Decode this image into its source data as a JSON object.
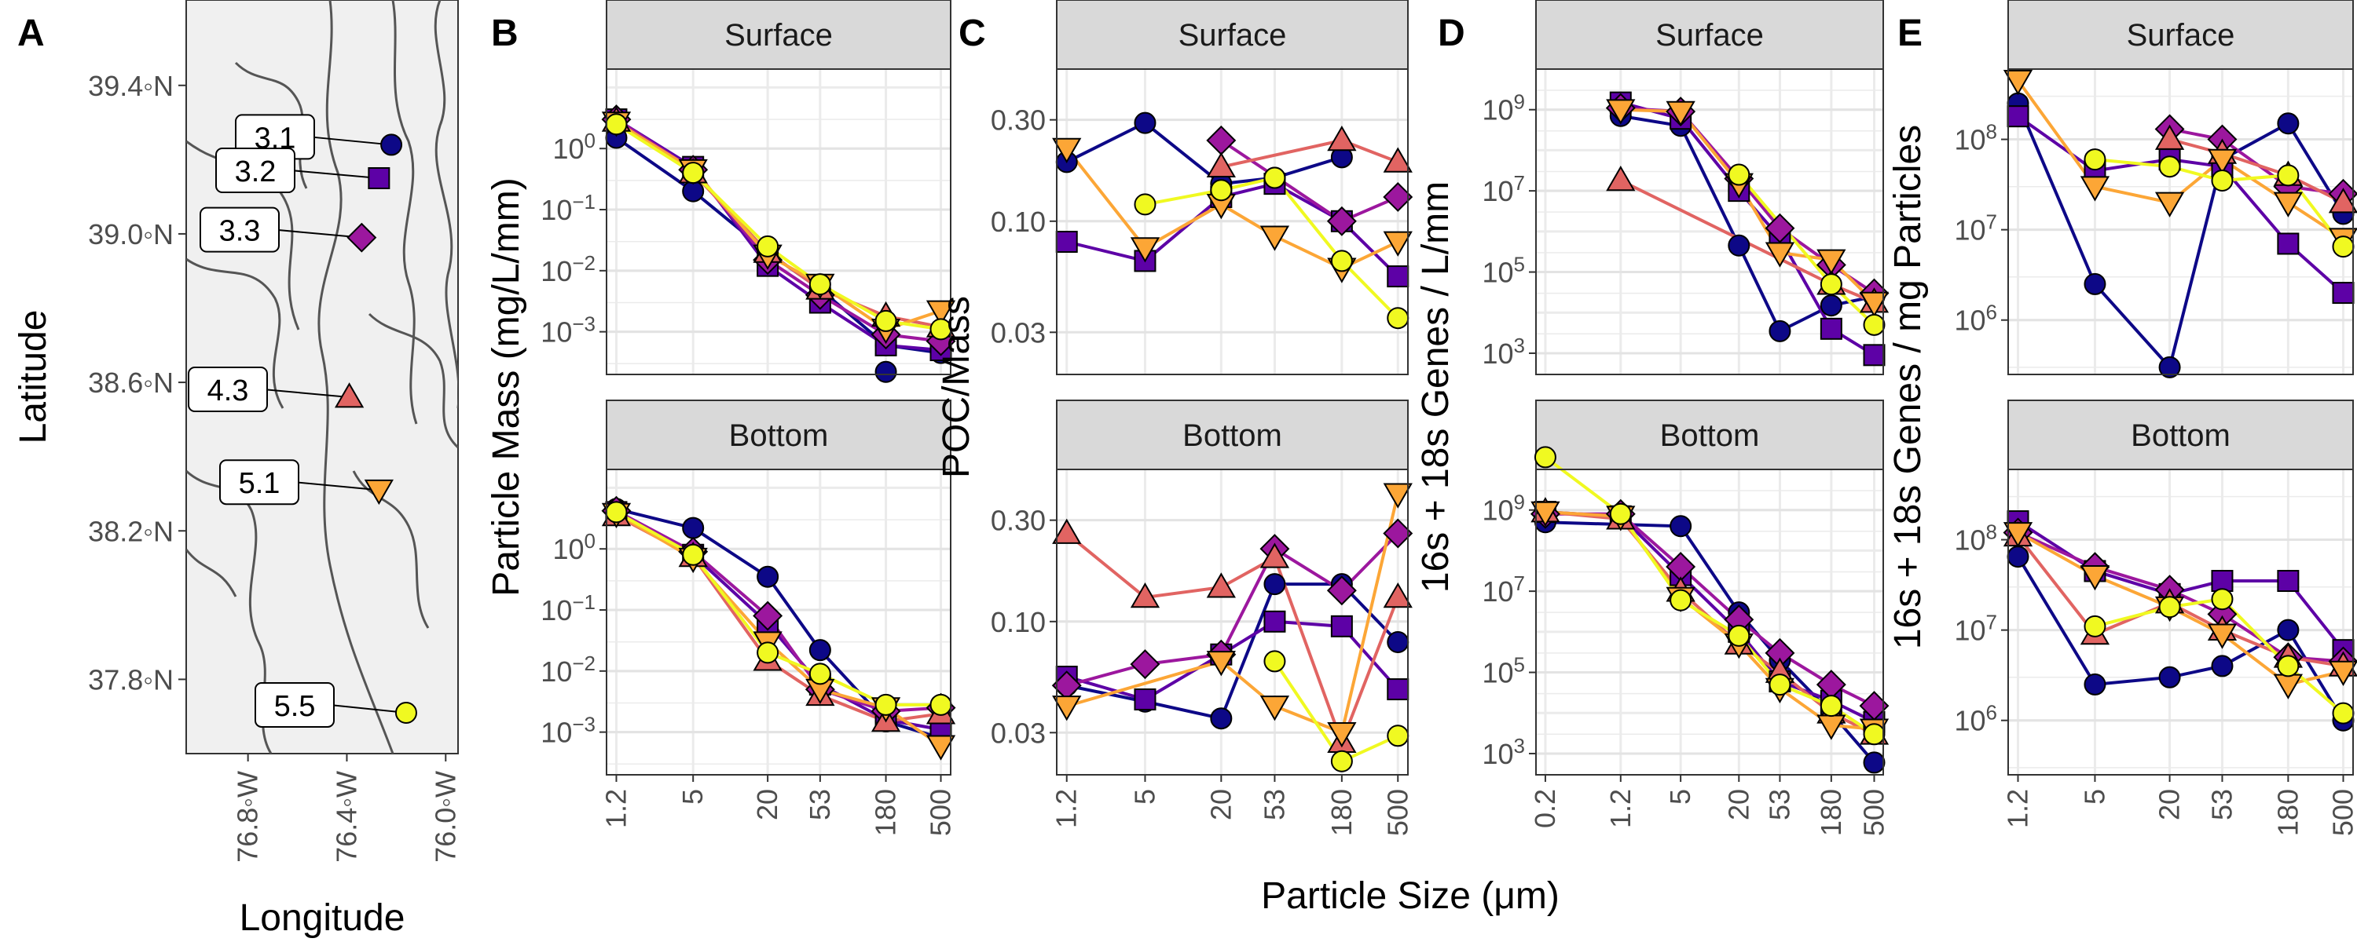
{
  "colors": {
    "3.1": "#0d0887",
    "3.2": "#5d01a6",
    "3.3": "#9c179e",
    "4.3": "#e16462",
    "5.1": "#fca636",
    "5.5": "#f0f921"
  },
  "stations": [
    "3.1",
    "3.2",
    "3.3",
    "4.3",
    "5.1",
    "5.5"
  ],
  "shapes": {
    "3.1": "circle",
    "3.2": "square",
    "3.3": "diamond",
    "4.3": "triangle",
    "5.1": "triangle-down",
    "5.5": "circle"
  },
  "map": {
    "letter": "A",
    "xlabel": "Longitude",
    "ylabel": "Latitude",
    "xlim": [
      -77.05,
      -75.95
    ],
    "ylim": [
      37.6,
      39.63
    ],
    "xticks": [
      {
        "v": -76.8,
        "label": "76.8◦W"
      },
      {
        "v": -76.4,
        "label": "76.4◦W"
      },
      {
        "v": -76.0,
        "label": "76.0◦W"
      }
    ],
    "yticks": [
      {
        "v": 39.4,
        "label": "39.4◦N"
      },
      {
        "v": 39.0,
        "label": "39.0◦N"
      },
      {
        "v": 38.6,
        "label": "38.6◦N"
      },
      {
        "v": 38.2,
        "label": "38.2◦N"
      },
      {
        "v": 37.8,
        "label": "37.8◦N"
      }
    ],
    "points": [
      {
        "station": "3.1",
        "lon": -76.22,
        "lat": 39.24,
        "label": "3.1"
      },
      {
        "station": "3.2",
        "lon": -76.27,
        "lat": 39.15,
        "label": "3.2"
      },
      {
        "station": "3.3",
        "lon": -76.34,
        "lat": 38.99,
        "label": "3.3"
      },
      {
        "station": "4.3",
        "lon": -76.39,
        "lat": 38.56,
        "label": "4.3"
      },
      {
        "station": "5.1",
        "lon": -76.27,
        "lat": 38.31,
        "label": "5.1"
      },
      {
        "station": "5.5",
        "lon": -76.16,
        "lat": 37.71,
        "label": "5.5"
      }
    ]
  },
  "shared_xlabel": "Particle Size (μm)",
  "chart_data": [
    {
      "type": "line",
      "letter": "B",
      "ylabel": "Particle Mass (mg/L/mm)",
      "log_y": true,
      "ylim": [
        0.0002,
        20
      ],
      "yticks": [
        {
          "v": 1,
          "label": "10^0"
        },
        {
          "v": 0.1,
          "label": "10^-1"
        },
        {
          "v": 0.01,
          "label": "10^-2"
        },
        {
          "v": 0.001,
          "label": "10^-3"
        }
      ],
      "x": [
        "1.2",
        "5",
        "20",
        "53",
        "180",
        "500"
      ],
      "xvals": [
        1.2,
        5,
        20,
        53,
        180,
        500
      ],
      "xlim": [
        1.0,
        600
      ],
      "facets": [
        {
          "strip": "Surface",
          "series": [
            {
              "station": "3.1",
              "values": [
                1.5,
                0.2,
                0.02,
                0.005,
                0.0006,
                0.00045
              ]
            },
            {
              "station": "3.2",
              "values": [
                3.0,
                0.5,
                0.012,
                0.003,
                0.0006,
                0.0005
              ]
            },
            {
              "station": "3.3",
              "values": [
                3.0,
                0.45,
                0.015,
                0.004,
                0.0009,
                0.0007
              ]
            },
            {
              "station": "4.3",
              "values": [
                2.8,
                0.4,
                0.02,
                0.005,
                0.0018,
                0.0012
              ]
            },
            {
              "station": "5.1",
              "values": [
                2.7,
                0.45,
                0.018,
                0.006,
                0.0011,
                0.0022
              ]
            },
            {
              "station": "5.5",
              "values": [
                2.5,
                0.4,
                0.025,
                0.006,
                0.0015,
                0.0011
              ]
            }
          ],
          "extra_points": [
            {
              "station": "3.1",
              "x": 180,
              "y": 0.00022
            }
          ]
        },
        {
          "strip": "Bottom",
          "series": [
            {
              "station": "3.1",
              "values": [
                4.5,
                2.2,
                0.35,
                0.022,
                0.0015,
                0.0008
              ]
            },
            {
              "station": "3.2",
              "values": [
                4.0,
                0.8,
                0.06,
                0.006,
                0.0016,
                0.0011
              ]
            },
            {
              "station": "3.3",
              "values": [
                4.2,
                0.9,
                0.08,
                0.005,
                0.0022,
                0.0025
              ]
            },
            {
              "station": "4.3",
              "values": [
                3.5,
                0.75,
                0.015,
                0.004,
                0.0015,
                0.002
              ]
            },
            {
              "station": "5.1",
              "values": [
                3.8,
                0.7,
                0.03,
                0.005,
                0.0025,
                0.0006
              ]
            },
            {
              "station": "5.5",
              "values": [
                4.0,
                0.8,
                0.02,
                0.009,
                0.0028,
                0.0028
              ]
            }
          ]
        }
      ]
    },
    {
      "type": "line",
      "letter": "C",
      "ylabel": "POC/Mass",
      "log_y": true,
      "ylim": [
        0.019,
        0.52
      ],
      "yticks": [
        {
          "v": 0.3,
          "label": "0.30"
        },
        {
          "v": 0.1,
          "label": "0.10"
        },
        {
          "v": 0.03,
          "label": "0.03"
        }
      ],
      "x": [
        "1.2",
        "5",
        "20",
        "53",
        "180",
        "500"
      ],
      "xvals": [
        1.2,
        5,
        20,
        53,
        180,
        500
      ],
      "xlim": [
        1.0,
        600
      ],
      "facets": [
        {
          "strip": "Surface",
          "series": [
            {
              "station": "3.1",
              "values": [
                0.19,
                0.29,
                0.15,
                0.16,
                0.2,
                null
              ]
            },
            {
              "station": "3.2",
              "values": [
                0.08,
                0.065,
                0.13,
                0.15,
                0.1,
                0.055
              ]
            },
            {
              "station": "3.3",
              "values": [
                null,
                null,
                0.24,
                null,
                0.1,
                0.13
              ]
            },
            {
              "station": "4.3",
              "values": [
                null,
                null,
                0.18,
                null,
                0.24,
                0.19
              ]
            },
            {
              "station": "5.1",
              "values": [
                0.22,
                0.075,
                0.12,
                0.085,
                0.06,
                0.08
              ]
            },
            {
              "station": "5.5",
              "values": [
                null,
                0.12,
                0.14,
                0.16,
                0.065,
                0.035
              ]
            }
          ]
        },
        {
          "strip": "Bottom",
          "series": [
            {
              "station": "3.1",
              "values": [
                0.05,
                0.042,
                0.035,
                0.15,
                0.15,
                0.08
              ]
            },
            {
              "station": "3.2",
              "values": [
                0.055,
                0.043,
                0.07,
                0.1,
                0.095,
                0.048
              ]
            },
            {
              "station": "3.3",
              "values": [
                0.05,
                0.063,
                0.07,
                0.22,
                0.14,
                0.26
              ]
            },
            {
              "station": "4.3",
              "values": [
                0.26,
                0.13,
                0.145,
                0.2,
                0.027,
                0.13
              ]
            },
            {
              "station": "5.1",
              "values": [
                0.04,
                null,
                0.065,
                0.04,
                0.03,
                0.4
              ]
            },
            {
              "station": "5.5",
              "values": [
                null,
                null,
                null,
                0.065,
                0.022,
                0.029
              ]
            }
          ]
        }
      ]
    },
    {
      "type": "line",
      "letter": "D",
      "ylabel": "16s + 18s Genes / L/mm",
      "log_y": true,
      "ylim": [
        300,
        10000000000.0
      ],
      "yticks": [
        {
          "v": 1000000000.0,
          "label": "10^9"
        },
        {
          "v": 10000000.0,
          "label": "10^7"
        },
        {
          "v": 100000.0,
          "label": "10^5"
        },
        {
          "v": 1000.0,
          "label": "10^3"
        }
      ],
      "x": [
        "0.2",
        "1.2",
        "5",
        "20",
        "53",
        "180",
        "500"
      ],
      "xvals": [
        0.2,
        1.2,
        5,
        20,
        53,
        180,
        500
      ],
      "xlim": [
        0.16,
        620
      ],
      "facets": [
        {
          "strip": "Surface",
          "series": [
            {
              "station": "3.1",
              "values": [
                null,
                700000000.0,
                400000000.0,
                450000.0,
                3500.0,
                15000.0,
                25000.0
              ]
            },
            {
              "station": "3.2",
              "values": [
                null,
                1500000000.0,
                600000000.0,
                10000000.0,
                700000.0,
                4000.0,
                900.0
              ]
            },
            {
              "station": "3.3",
              "values": [
                null,
                1100000000.0,
                900000000.0,
                20000000.0,
                1200000.0,
                150000.0,
                30000.0
              ]
            },
            {
              "station": "4.3",
              "values": [
                null,
                18000000.0,
                null,
                null,
                null,
                50000.0,
                18000.0
              ]
            },
            {
              "station": "5.1",
              "values": [
                null,
                1000000000.0,
                900000000.0,
                15000000.0,
                300000.0,
                200000.0,
                18000.0
              ]
            },
            {
              "station": "5.5",
              "values": [
                null,
                null,
                null,
                25000000.0,
                null,
                50000.0,
                5000.0
              ]
            }
          ]
        },
        {
          "strip": "Bottom",
          "series": [
            {
              "station": "3.1",
              "values": [
                500000000.0,
                null,
                400000000.0,
                3000000.0,
                200000.0,
                10000.0,
                600
              ]
            },
            {
              "station": "3.2",
              "values": [
                900000000.0,
                700000000.0,
                25000000.0,
                1000000.0,
                60000.0,
                20000.0,
                6000.0
              ]
            },
            {
              "station": "3.3",
              "values": [
                800000000.0,
                800000000.0,
                40000000.0,
                2000000.0,
                300000.0,
                50000.0,
                15000.0
              ]
            },
            {
              "station": "4.3",
              "values": [
                900000000.0,
                600000000.0,
                10000000.0,
                500000.0,
                100000.0,
                10000.0,
                3000.0
              ]
            },
            {
              "station": "5.1",
              "values": [
                900000000.0,
                700000000.0,
                7000000.0,
                500000.0,
                40000.0,
                5000.0,
                4000.0
              ]
            },
            {
              "station": "5.5",
              "values": [
                20000000000.0,
                800000000.0,
                6000000.0,
                800000.0,
                50000.0,
                15000.0,
                3000.0
              ]
            }
          ]
        }
      ]
    },
    {
      "type": "line",
      "letter": "E",
      "ylabel": "16s + 18s Genes / mg Particles",
      "log_y": true,
      "ylim": [
        250000.0,
        600000000.0
      ],
      "yticks": [
        {
          "v": 100000000.0,
          "label": "10^8"
        },
        {
          "v": 10000000.0,
          "label": "10^7"
        },
        {
          "v": 1000000.0,
          "label": "10^6"
        }
      ],
      "x": [
        "1.2",
        "5",
        "20",
        "53",
        "180",
        "500"
      ],
      "xvals": [
        1.2,
        5,
        20,
        53,
        180,
        500
      ],
      "xlim": [
        1.0,
        600
      ],
      "facets": [
        {
          "strip": "Surface",
          "series": [
            {
              "station": "3.1",
              "values": [
                250000000.0,
                2500000.0,
                300000.0,
                60000000.0,
                150000000.0,
                15000000.0
              ]
            },
            {
              "station": "3.2",
              "values": [
                180000000.0,
                45000000.0,
                60000000.0,
                50000000.0,
                7000000.0,
                2000000.0
              ]
            },
            {
              "station": "3.3",
              "values": [
                null,
                null,
                130000000.0,
                100000000.0,
                30000000.0,
                25000000.0
              ]
            },
            {
              "station": "4.3",
              "values": [
                null,
                null,
                100000000.0,
                70000000.0,
                40000000.0,
                20000000.0
              ]
            },
            {
              "station": "5.1",
              "values": [
                450000000.0,
                30000000.0,
                20000000.0,
                60000000.0,
                20000000.0,
                8000000.0
              ]
            },
            {
              "station": "5.5",
              "values": [
                null,
                60000000.0,
                50000000.0,
                35000000.0,
                40000000.0,
                6500000.0
              ]
            }
          ]
        },
        {
          "strip": "Bottom",
          "series": [
            {
              "station": "3.1",
              "values": [
                65000000.0,
                2500000.0,
                3000000.0,
                4000000.0,
                10000000.0,
                1000000.0
              ]
            },
            {
              "station": "3.2",
              "values": [
                160000000.0,
                45000000.0,
                25000000.0,
                35000000.0,
                35000000.0,
                6000000.0
              ]
            },
            {
              "station": "3.3",
              "values": [
                120000000.0,
                50000000.0,
                28000000.0,
                15000000.0,
                5000000.0,
                4500000.0
              ]
            },
            {
              "station": "4.3",
              "values": [
                110000000.0,
                9000000.0,
                20000000.0,
                10000000.0,
                5000000.0,
                4000000.0
              ]
            },
            {
              "station": "5.1",
              "values": [
                120000000.0,
                40000000.0,
                18000000.0,
                9000000.0,
                2500000.0,
                3500000.0
              ]
            },
            {
              "station": "5.5",
              "values": [
                null,
                11000000.0,
                18000000.0,
                22000000.0,
                4000000.0,
                1200000.0
              ]
            }
          ]
        }
      ]
    }
  ]
}
